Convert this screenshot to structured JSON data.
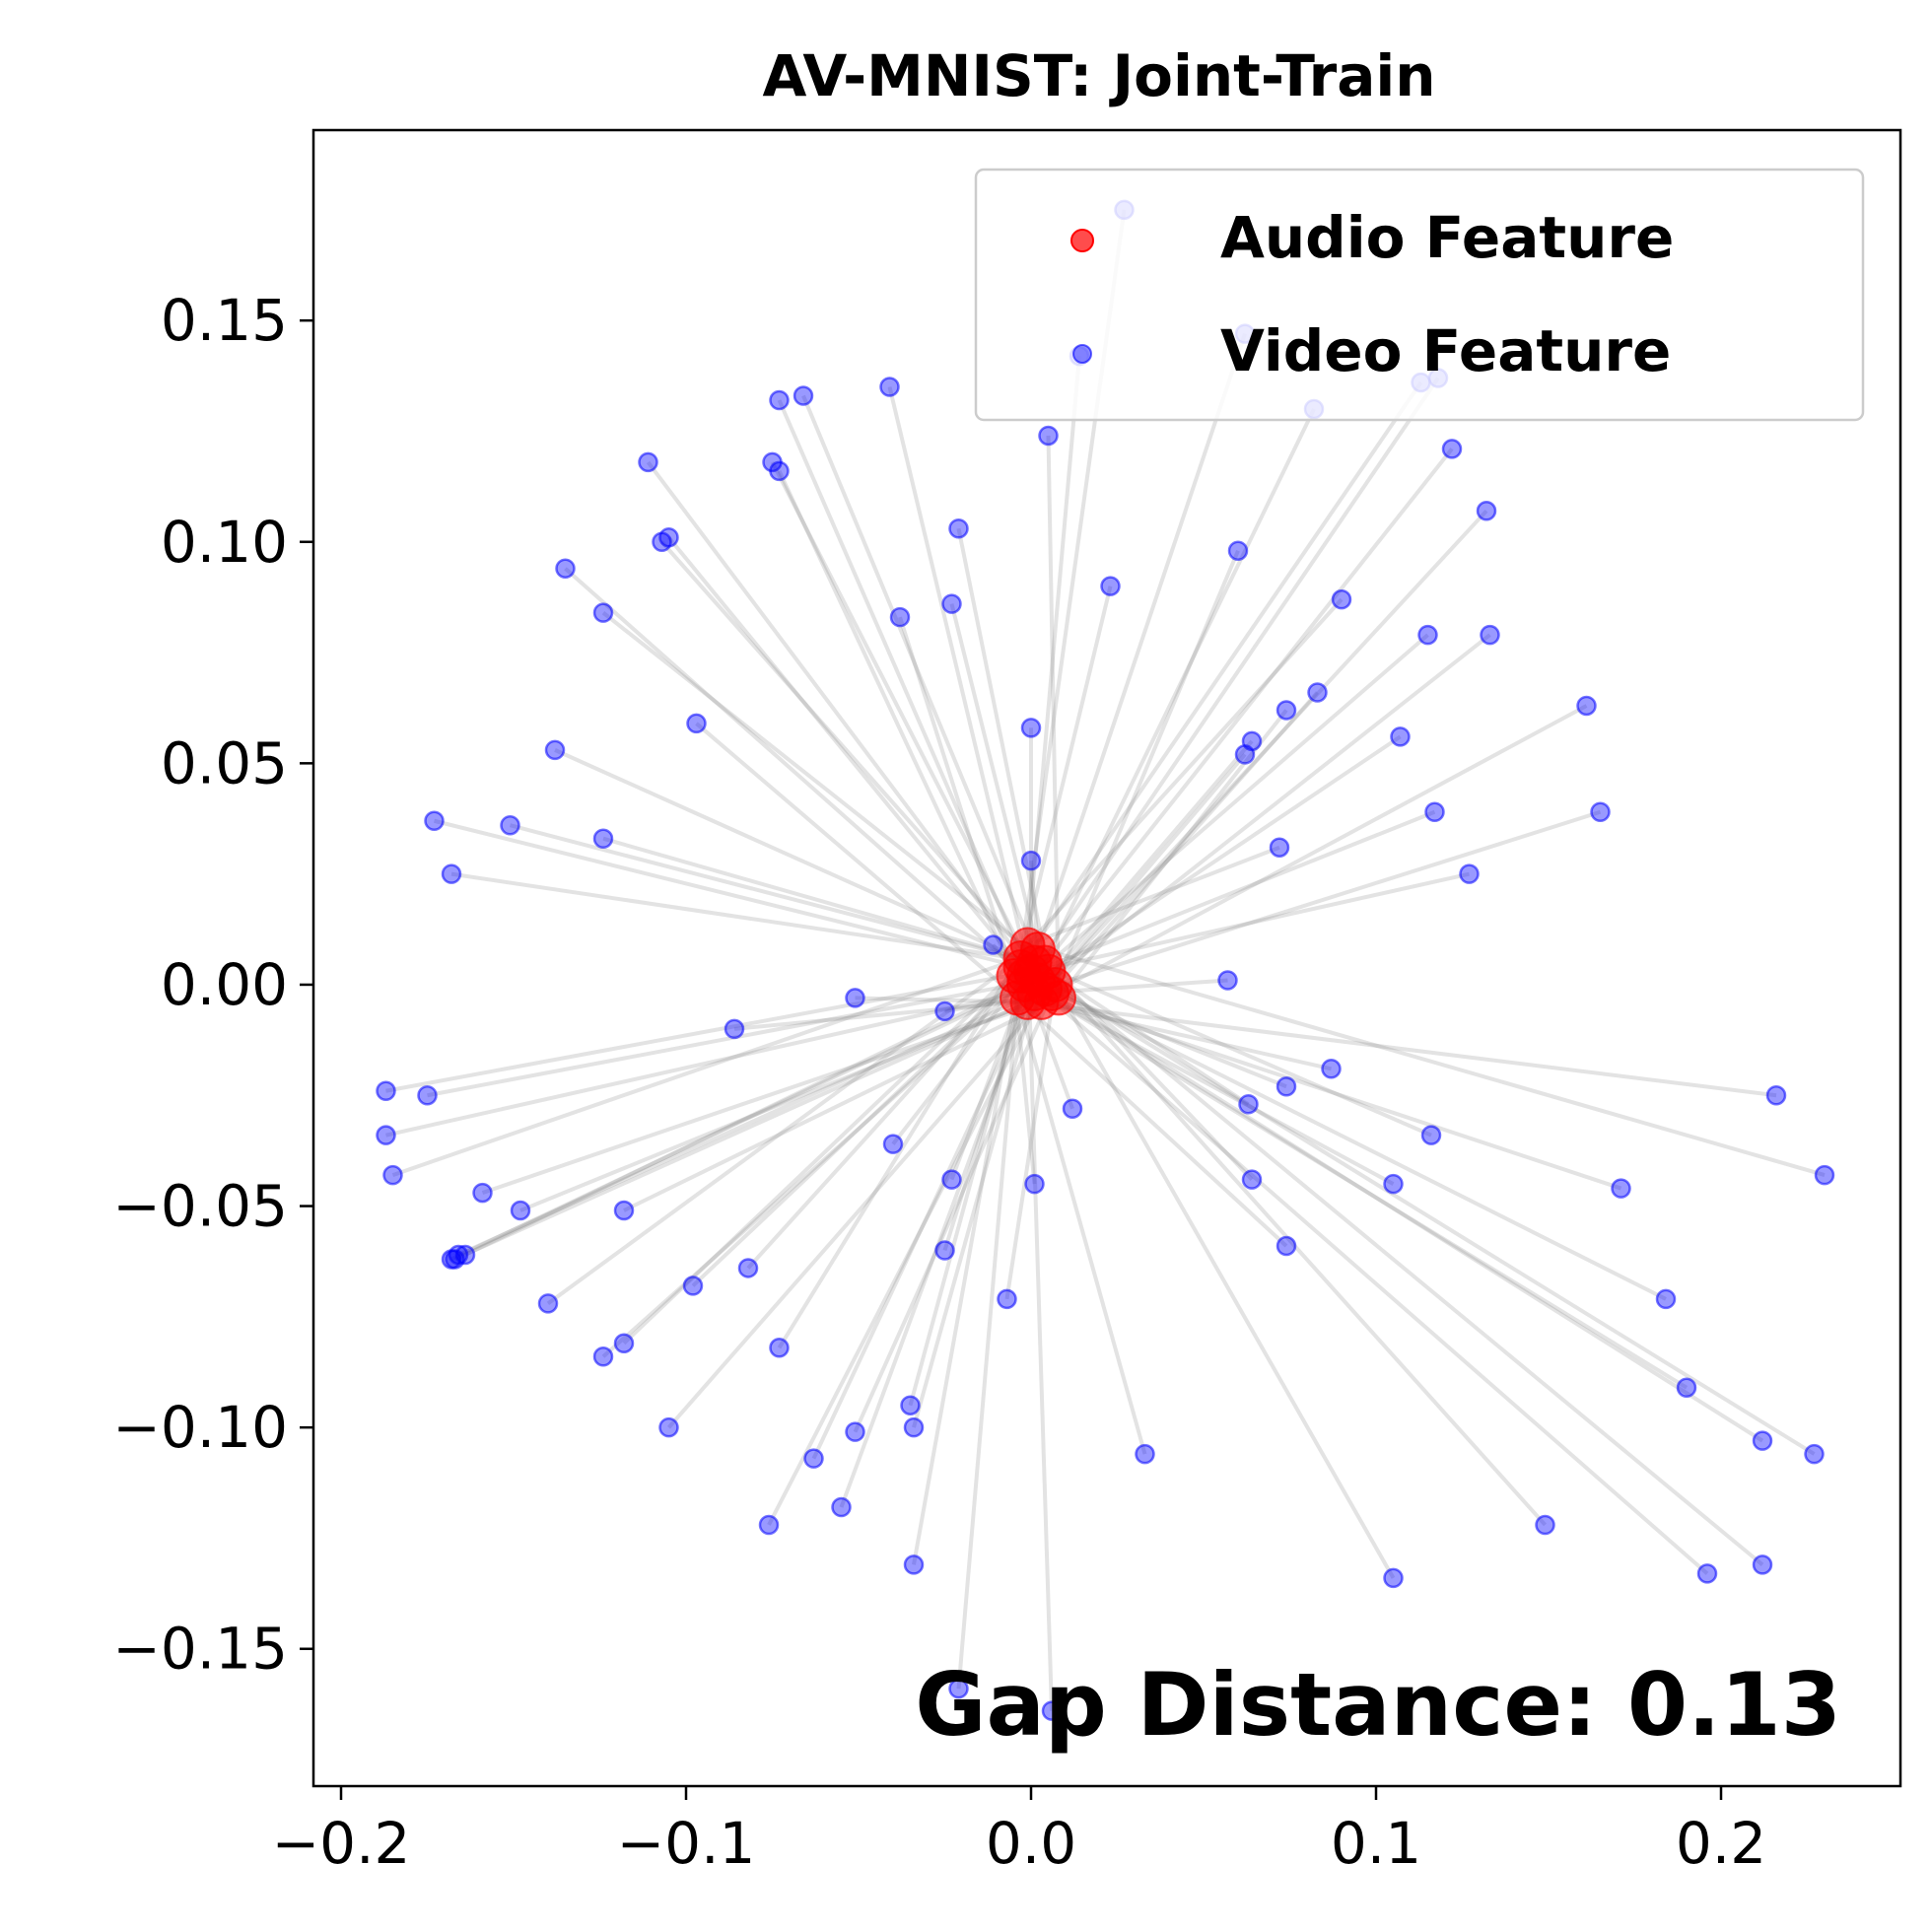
{
  "chart_data": {
    "type": "scatter",
    "title": "AV-MNIST: Joint-Train",
    "xlabel": "",
    "ylabel": "",
    "xlim": [
      -0.208,
      0.252
    ],
    "ylim": [
      -0.181,
      0.193
    ],
    "x_ticks": [
      {
        "value": -0.2,
        "label": "−0.2"
      },
      {
        "value": -0.1,
        "label": "−0.1"
      },
      {
        "value": 0.0,
        "label": "0.0"
      },
      {
        "value": 0.1,
        "label": "0.1"
      },
      {
        "value": 0.2,
        "label": "0.2"
      }
    ],
    "y_ticks": [
      {
        "value": 0.15,
        "label": "0.15"
      },
      {
        "value": 0.1,
        "label": "0.10"
      },
      {
        "value": 0.05,
        "label": "0.05"
      },
      {
        "value": 0.0,
        "label": "0.00"
      },
      {
        "value": -0.05,
        "label": "−0.05"
      },
      {
        "value": -0.1,
        "label": "−0.10"
      },
      {
        "value": -0.15,
        "label": "−0.15"
      }
    ],
    "grid": false,
    "legend_position": "top-right",
    "series": [
      {
        "name": "Audio Feature",
        "color": "#ff0000",
        "points": [
          [
            -0.003,
            0.006
          ],
          [
            -0.001,
            0.009
          ],
          [
            0.002,
            0.008
          ],
          [
            0.004,
            0.005
          ],
          [
            -0.005,
            0.002
          ],
          [
            -0.002,
            0.0
          ],
          [
            0.001,
            -0.002
          ],
          [
            0.003,
            -0.004
          ],
          [
            0.006,
            -0.002
          ],
          [
            0.008,
            -0.003
          ],
          [
            -0.004,
            -0.003
          ],
          [
            0.0,
            0.003
          ],
          [
            0.002,
            0.001
          ],
          [
            -0.001,
            -0.004
          ],
          [
            0.004,
            -0.001
          ],
          [
            0.005,
            0.003
          ],
          [
            -0.003,
            0.004
          ],
          [
            0.001,
            0.005
          ],
          [
            0.007,
            0.0
          ],
          [
            -0.002,
            0.002
          ]
        ]
      },
      {
        "name": "Video Feature",
        "color": "#0000ff",
        "points": [
          [
            0.027,
            0.175
          ],
          [
            0.014,
            0.142
          ],
          [
            0.062,
            0.147
          ],
          [
            0.082,
            0.13
          ],
          [
            0.113,
            0.136
          ],
          [
            0.118,
            0.137
          ],
          [
            -0.041,
            0.135
          ],
          [
            -0.073,
            0.132
          ],
          [
            -0.066,
            0.133
          ],
          [
            0.005,
            0.124
          ],
          [
            0.122,
            0.121
          ],
          [
            -0.111,
            0.118
          ],
          [
            -0.075,
            0.118
          ],
          [
            -0.073,
            0.116
          ],
          [
            0.132,
            0.107
          ],
          [
            -0.021,
            0.103
          ],
          [
            -0.105,
            0.101
          ],
          [
            -0.107,
            0.1
          ],
          [
            0.06,
            0.098
          ],
          [
            -0.135,
            0.094
          ],
          [
            0.023,
            0.09
          ],
          [
            0.09,
            0.087
          ],
          [
            -0.023,
            0.086
          ],
          [
            -0.124,
            0.084
          ],
          [
            -0.038,
            0.083
          ],
          [
            0.115,
            0.079
          ],
          [
            0.133,
            0.079
          ],
          [
            0.083,
            0.066
          ],
          [
            0.161,
            0.063
          ],
          [
            0.074,
            0.062
          ],
          [
            -0.097,
            0.059
          ],
          [
            0.0,
            0.058
          ],
          [
            0.107,
            0.056
          ],
          [
            0.064,
            0.055
          ],
          [
            0.062,
            0.052
          ],
          [
            -0.138,
            0.053
          ],
          [
            -0.173,
            0.037
          ],
          [
            -0.151,
            0.036
          ],
          [
            0.165,
            0.039
          ],
          [
            0.117,
            0.039
          ],
          [
            -0.124,
            0.033
          ],
          [
            0.072,
            0.031
          ],
          [
            0.0,
            0.028
          ],
          [
            -0.168,
            0.025
          ],
          [
            0.127,
            0.025
          ],
          [
            -0.011,
            0.009
          ],
          [
            0.057,
            0.001
          ],
          [
            -0.051,
            -0.003
          ],
          [
            -0.025,
            -0.006
          ],
          [
            -0.086,
            -0.01
          ],
          [
            0.087,
            -0.019
          ],
          [
            -0.187,
            -0.024
          ],
          [
            -0.175,
            -0.025
          ],
          [
            0.216,
            -0.025
          ],
          [
            0.074,
            -0.023
          ],
          [
            0.063,
            -0.027
          ],
          [
            0.012,
            -0.028
          ],
          [
            0.116,
            -0.034
          ],
          [
            -0.187,
            -0.034
          ],
          [
            -0.04,
            -0.036
          ],
          [
            -0.185,
            -0.043
          ],
          [
            0.23,
            -0.043
          ],
          [
            -0.023,
            -0.044
          ],
          [
            0.064,
            -0.044
          ],
          [
            0.001,
            -0.045
          ],
          [
            0.105,
            -0.045
          ],
          [
            0.171,
            -0.046
          ],
          [
            -0.159,
            -0.047
          ],
          [
            -0.148,
            -0.051
          ],
          [
            -0.118,
            -0.051
          ],
          [
            0.074,
            -0.059
          ],
          [
            -0.025,
            -0.06
          ],
          [
            -0.168,
            -0.062
          ],
          [
            -0.167,
            -0.062
          ],
          [
            -0.166,
            -0.061
          ],
          [
            -0.164,
            -0.061
          ],
          [
            -0.082,
            -0.064
          ],
          [
            -0.098,
            -0.068
          ],
          [
            -0.007,
            -0.071
          ],
          [
            0.184,
            -0.071
          ],
          [
            -0.14,
            -0.072
          ],
          [
            -0.073,
            -0.082
          ],
          [
            -0.118,
            -0.081
          ],
          [
            -0.124,
            -0.084
          ],
          [
            0.19,
            -0.091
          ],
          [
            -0.035,
            -0.095
          ],
          [
            -0.034,
            -0.1
          ],
          [
            -0.105,
            -0.1
          ],
          [
            -0.051,
            -0.101
          ],
          [
            0.212,
            -0.103
          ],
          [
            0.033,
            -0.106
          ],
          [
            0.227,
            -0.106
          ],
          [
            -0.063,
            -0.107
          ],
          [
            -0.055,
            -0.118
          ],
          [
            -0.076,
            -0.122
          ],
          [
            0.149,
            -0.122
          ],
          [
            -0.034,
            -0.131
          ],
          [
            0.212,
            -0.131
          ],
          [
            0.105,
            -0.134
          ],
          [
            0.196,
            -0.133
          ],
          [
            -0.021,
            -0.159
          ],
          [
            0.006,
            -0.164
          ]
        ]
      }
    ],
    "annotation": "Gap Distance: 0.13"
  }
}
